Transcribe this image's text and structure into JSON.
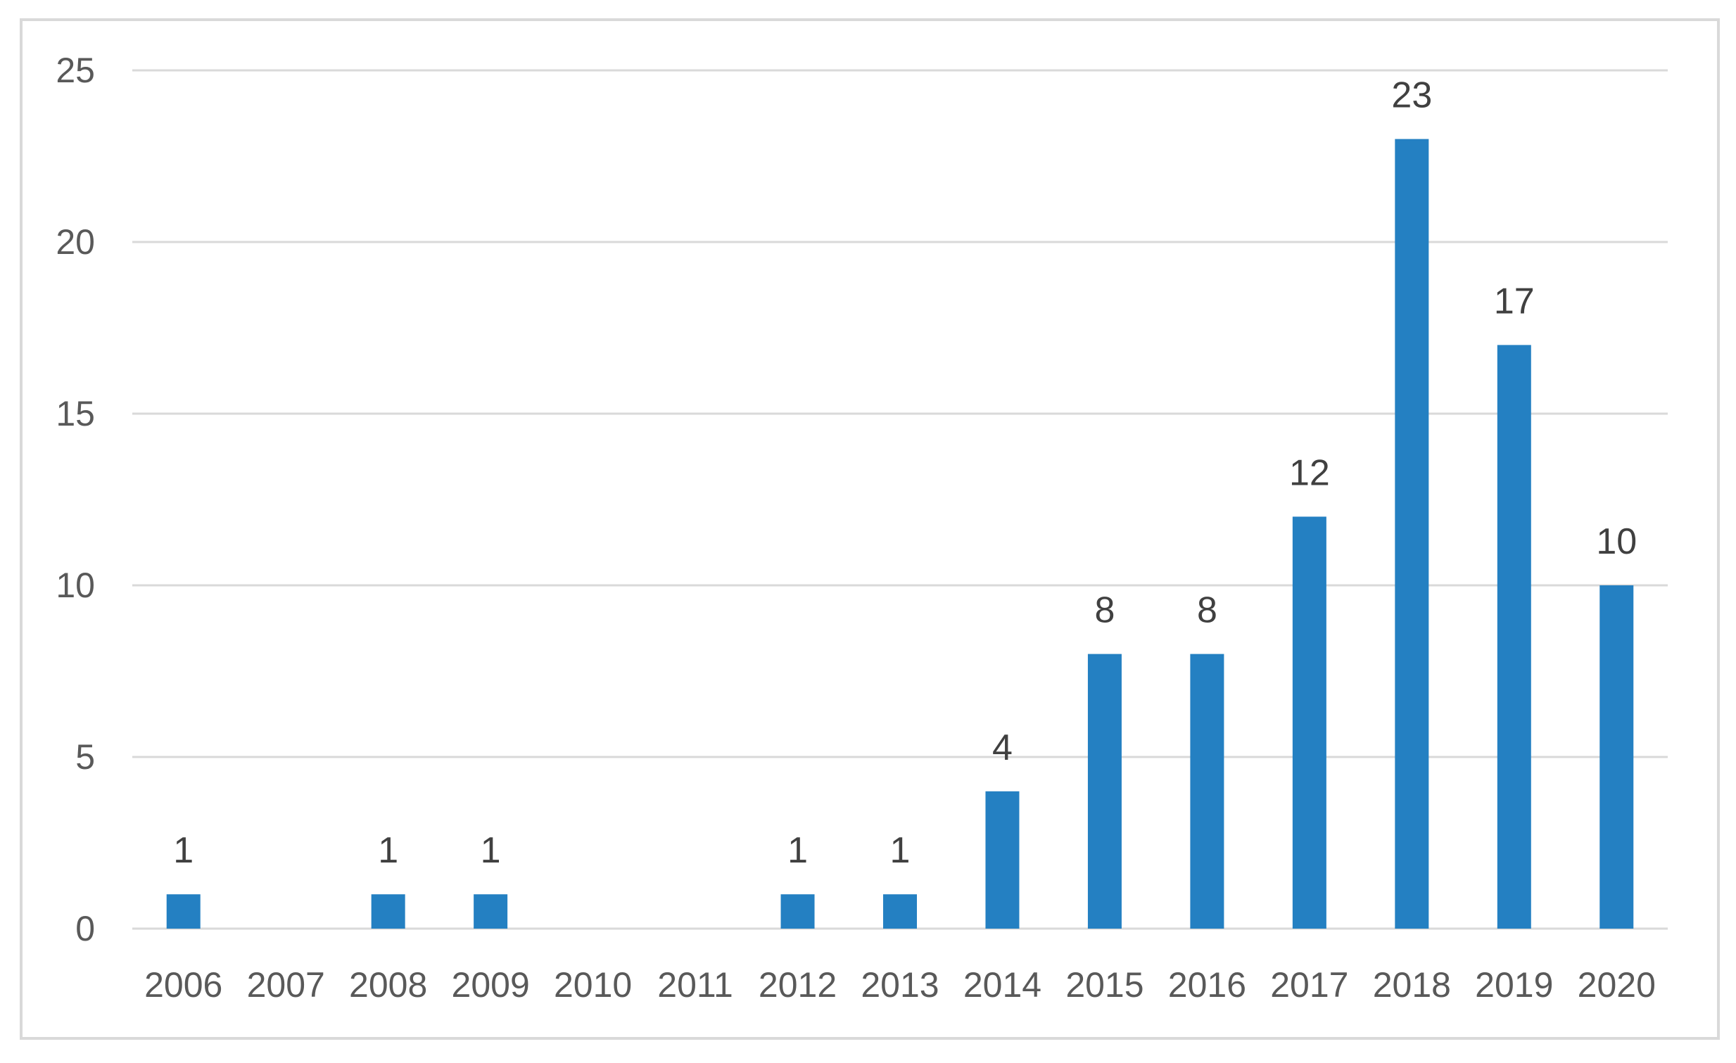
{
  "chart_data": {
    "type": "bar",
    "title": "",
    "xlabel": "",
    "ylabel": "",
    "categories": [
      "2006",
      "2007",
      "2008",
      "2009",
      "2010",
      "2011",
      "2012",
      "2013",
      "2014",
      "2015",
      "2016",
      "2017",
      "2018",
      "2019",
      "2020"
    ],
    "values": [
      1,
      0,
      1,
      1,
      0,
      0,
      1,
      1,
      4,
      8,
      8,
      12,
      23,
      17,
      10
    ],
    "data_labels": [
      "1",
      "",
      "1",
      "1",
      "",
      "",
      "1",
      "1",
      "4",
      "8",
      "8",
      "12",
      "23",
      "17",
      "10"
    ],
    "ylim": [
      0,
      25
    ],
    "yticks": [
      "0",
      "5",
      "10",
      "15",
      "20",
      "25"
    ],
    "grid": true,
    "legend": "none",
    "bar_color": "#2480c2",
    "gridline_color": "#d9d9d9",
    "border_color": "#d9d9d9"
  }
}
